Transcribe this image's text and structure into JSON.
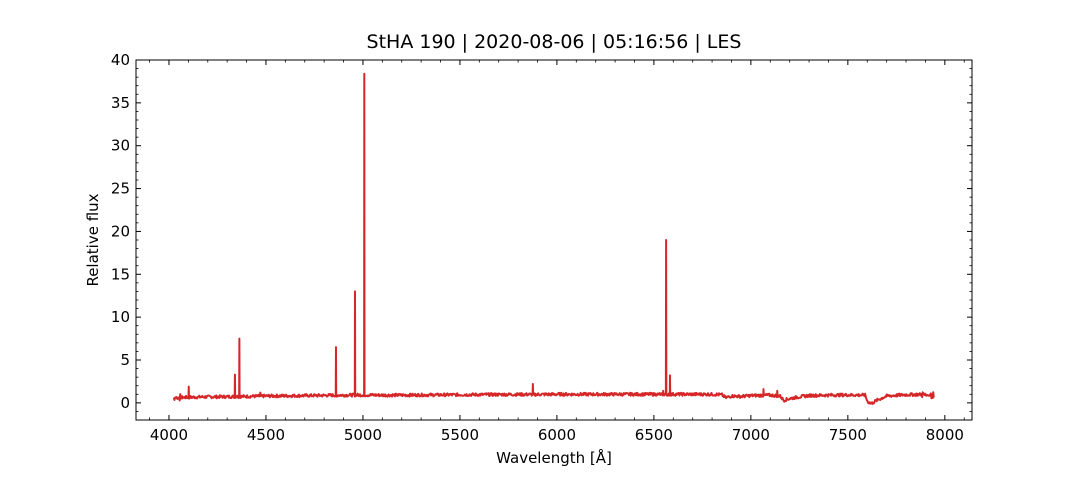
{
  "chart_data": {
    "type": "line",
    "title": "StHA 190 | 2020-08-06 | 05:16:56 | LES",
    "xlabel": "Wavelength [Å]",
    "ylabel": "Relative flux",
    "xlim": [
      3830,
      8140
    ],
    "ylim": [
      -2,
      40
    ],
    "xticks": [
      4000,
      4500,
      5000,
      5500,
      6000,
      6500,
      7000,
      7500,
      8000
    ],
    "yticks": [
      0,
      5,
      10,
      15,
      20,
      25,
      30,
      35,
      40
    ],
    "grid": false,
    "legend": "none",
    "color": "#d62728",
    "series": [
      {
        "continuum_x": [
          4025,
          4100,
          4200,
          4300,
          4400,
          4500,
          4600,
          4700,
          4800,
          4900,
          5000,
          5100,
          5200,
          5300,
          5400,
          5500,
          5600,
          5700,
          5800,
          5900,
          6000,
          6100,
          6200,
          6300,
          6400,
          6500,
          6600,
          6700,
          6800,
          6850,
          6870,
          6900,
          6950,
          7000,
          7100,
          7150,
          7170,
          7200,
          7250,
          7300,
          7400,
          7500,
          7590,
          7600,
          7620,
          7650,
          7700,
          7800,
          7900,
          7945
        ],
        "continuum_y": [
          0.6,
          0.65,
          0.7,
          0.72,
          0.75,
          0.8,
          0.82,
          0.85,
          0.87,
          0.9,
          0.92,
          0.9,
          0.9,
          0.92,
          0.93,
          0.95,
          0.96,
          0.97,
          0.98,
          0.98,
          1.0,
          1.0,
          1.0,
          1.0,
          1.0,
          1.0,
          1.0,
          1.0,
          1.0,
          0.95,
          0.6,
          0.8,
          0.75,
          0.85,
          0.9,
          0.8,
          0.3,
          0.5,
          0.7,
          0.85,
          0.9,
          0.92,
          0.9,
          0.2,
          -0.1,
          0.3,
          0.8,
          0.95,
          1.0,
          0.9
        ],
        "lines": [
          {
            "x": 4102,
            "y": 1.9
          },
          {
            "x": 4340,
            "y": 3.3
          },
          {
            "x": 4363,
            "y": 7.5
          },
          {
            "x": 4471,
            "y": 1.2
          },
          {
            "x": 4861,
            "y": 6.5
          },
          {
            "x": 4959,
            "y": 13.0
          },
          {
            "x": 5007,
            "y": 38.4
          },
          {
            "x": 5876,
            "y": 2.2
          },
          {
            "x": 6548,
            "y": 1.4
          },
          {
            "x": 6563,
            "y": 19.0
          },
          {
            "x": 6583,
            "y": 3.2
          },
          {
            "x": 7065,
            "y": 1.6
          },
          {
            "x": 7136,
            "y": 1.4
          }
        ]
      }
    ]
  }
}
